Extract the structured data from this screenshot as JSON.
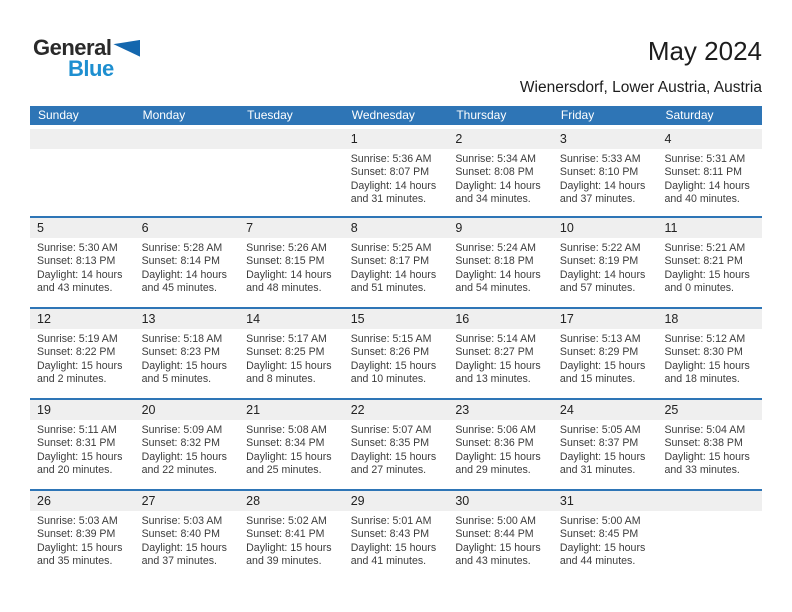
{
  "logo": {
    "general": "General",
    "blue": "Blue"
  },
  "header": {
    "title": "May 2024",
    "subtitle": "Wienersdorf, Lower Austria, Austria"
  },
  "colors": {
    "header_blue": "#2e75b6",
    "day_band_gray": "#efefef",
    "logo_word_blue": "#1e8fd0",
    "logo_triangle_blue": "#1467ae"
  },
  "calendar": {
    "weekdays": [
      "Sunday",
      "Monday",
      "Tuesday",
      "Wednesday",
      "Thursday",
      "Friday",
      "Saturday"
    ],
    "labels": {
      "sunrise": "Sunrise:",
      "sunset": "Sunset:",
      "daylight": "Daylight:"
    },
    "weeks": [
      [
        null,
        null,
        null,
        {
          "day": "1",
          "sunrise": "5:36 AM",
          "sunset": "8:07 PM",
          "daylight": "14 hours and 31 minutes."
        },
        {
          "day": "2",
          "sunrise": "5:34 AM",
          "sunset": "8:08 PM",
          "daylight": "14 hours and 34 minutes."
        },
        {
          "day": "3",
          "sunrise": "5:33 AM",
          "sunset": "8:10 PM",
          "daylight": "14 hours and 37 minutes."
        },
        {
          "day": "4",
          "sunrise": "5:31 AM",
          "sunset": "8:11 PM",
          "daylight": "14 hours and 40 minutes."
        }
      ],
      [
        {
          "day": "5",
          "sunrise": "5:30 AM",
          "sunset": "8:13 PM",
          "daylight": "14 hours and 43 minutes."
        },
        {
          "day": "6",
          "sunrise": "5:28 AM",
          "sunset": "8:14 PM",
          "daylight": "14 hours and 45 minutes."
        },
        {
          "day": "7",
          "sunrise": "5:26 AM",
          "sunset": "8:15 PM",
          "daylight": "14 hours and 48 minutes."
        },
        {
          "day": "8",
          "sunrise": "5:25 AM",
          "sunset": "8:17 PM",
          "daylight": "14 hours and 51 minutes."
        },
        {
          "day": "9",
          "sunrise": "5:24 AM",
          "sunset": "8:18 PM",
          "daylight": "14 hours and 54 minutes."
        },
        {
          "day": "10",
          "sunrise": "5:22 AM",
          "sunset": "8:19 PM",
          "daylight": "14 hours and 57 minutes."
        },
        {
          "day": "11",
          "sunrise": "5:21 AM",
          "sunset": "8:21 PM",
          "daylight": "15 hours and 0 minutes."
        }
      ],
      [
        {
          "day": "12",
          "sunrise": "5:19 AM",
          "sunset": "8:22 PM",
          "daylight": "15 hours and 2 minutes."
        },
        {
          "day": "13",
          "sunrise": "5:18 AM",
          "sunset": "8:23 PM",
          "daylight": "15 hours and 5 minutes."
        },
        {
          "day": "14",
          "sunrise": "5:17 AM",
          "sunset": "8:25 PM",
          "daylight": "15 hours and 8 minutes."
        },
        {
          "day": "15",
          "sunrise": "5:15 AM",
          "sunset": "8:26 PM",
          "daylight": "15 hours and 10 minutes."
        },
        {
          "day": "16",
          "sunrise": "5:14 AM",
          "sunset": "8:27 PM",
          "daylight": "15 hours and 13 minutes."
        },
        {
          "day": "17",
          "sunrise": "5:13 AM",
          "sunset": "8:29 PM",
          "daylight": "15 hours and 15 minutes."
        },
        {
          "day": "18",
          "sunrise": "5:12 AM",
          "sunset": "8:30 PM",
          "daylight": "15 hours and 18 minutes."
        }
      ],
      [
        {
          "day": "19",
          "sunrise": "5:11 AM",
          "sunset": "8:31 PM",
          "daylight": "15 hours and 20 minutes."
        },
        {
          "day": "20",
          "sunrise": "5:09 AM",
          "sunset": "8:32 PM",
          "daylight": "15 hours and 22 minutes."
        },
        {
          "day": "21",
          "sunrise": "5:08 AM",
          "sunset": "8:34 PM",
          "daylight": "15 hours and 25 minutes."
        },
        {
          "day": "22",
          "sunrise": "5:07 AM",
          "sunset": "8:35 PM",
          "daylight": "15 hours and 27 minutes."
        },
        {
          "day": "23",
          "sunrise": "5:06 AM",
          "sunset": "8:36 PM",
          "daylight": "15 hours and 29 minutes."
        },
        {
          "day": "24",
          "sunrise": "5:05 AM",
          "sunset": "8:37 PM",
          "daylight": "15 hours and 31 minutes."
        },
        {
          "day": "25",
          "sunrise": "5:04 AM",
          "sunset": "8:38 PM",
          "daylight": "15 hours and 33 minutes."
        }
      ],
      [
        {
          "day": "26",
          "sunrise": "5:03 AM",
          "sunset": "8:39 PM",
          "daylight": "15 hours and 35 minutes."
        },
        {
          "day": "27",
          "sunrise": "5:03 AM",
          "sunset": "8:40 PM",
          "daylight": "15 hours and 37 minutes."
        },
        {
          "day": "28",
          "sunrise": "5:02 AM",
          "sunset": "8:41 PM",
          "daylight": "15 hours and 39 minutes."
        },
        {
          "day": "29",
          "sunrise": "5:01 AM",
          "sunset": "8:43 PM",
          "daylight": "15 hours and 41 minutes."
        },
        {
          "day": "30",
          "sunrise": "5:00 AM",
          "sunset": "8:44 PM",
          "daylight": "15 hours and 43 minutes."
        },
        {
          "day": "31",
          "sunrise": "5:00 AM",
          "sunset": "8:45 PM",
          "daylight": "15 hours and 44 minutes."
        },
        null
      ]
    ]
  }
}
